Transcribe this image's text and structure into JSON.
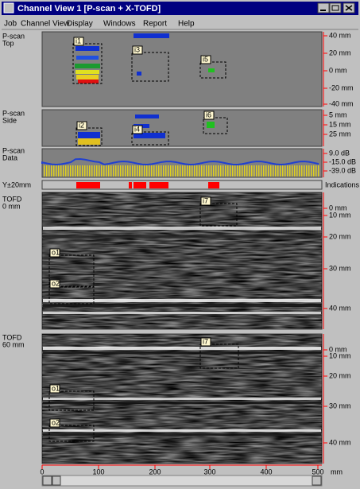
{
  "window": {
    "title": "Channel View 1 [P-scan + X-TOFD]"
  },
  "menu": [
    "Job",
    "Channel View",
    "Display",
    "Windows",
    "Report",
    "Help"
  ],
  "panels": [
    {
      "label": [
        "P-scan",
        "Top"
      ],
      "ticks": [
        "40 mm",
        "20 mm",
        "0 mm",
        "-20 mm",
        "-40 mm"
      ],
      "boxes": [
        "i1",
        "i3",
        "i5"
      ]
    },
    {
      "label": [
        "P-scan",
        "Side"
      ],
      "ticks": [
        "5 mm",
        "15 mm",
        "25 mm"
      ],
      "boxes": [
        "i2",
        "i4",
        "i6"
      ]
    },
    {
      "label": [
        "P-scan",
        "Data"
      ],
      "ticks": [
        "9.0 dB",
        "-15.0 dB",
        "-39.0 dB"
      ],
      "boxes": []
    },
    {
      "label": [
        "Y±20mm"
      ],
      "ticks": [
        "Indications"
      ],
      "boxes": []
    },
    {
      "label": [
        "TOFD",
        "0 mm"
      ],
      "ticks": [
        "0 mm",
        "10 mm",
        "20 mm",
        "30 mm",
        "40 mm"
      ],
      "boxes": [
        "i7",
        "o1",
        "o2"
      ]
    },
    {
      "label": [
        "TOFD",
        "60 mm"
      ],
      "ticks": [
        "0 mm",
        "10 mm",
        "20 mm",
        "30 mm",
        "40 mm"
      ],
      "boxes": [
        "i7",
        "o1",
        "o2"
      ]
    }
  ],
  "x_axis": {
    "ticks": [
      "0",
      "100",
      "200",
      "300",
      "400",
      "500"
    ],
    "unit": "mm"
  }
}
